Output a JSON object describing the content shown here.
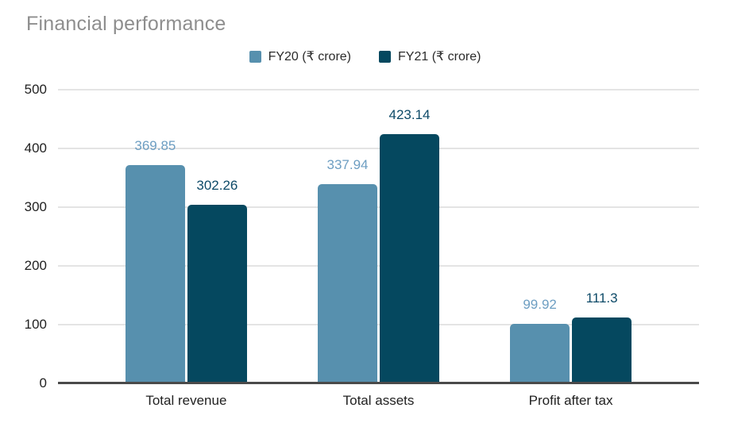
{
  "chart_data": {
    "type": "bar",
    "title": "Financial performance",
    "title_color": "#8e8e8e",
    "categories": [
      "Total revenue",
      "Total assets",
      "Profit after tax"
    ],
    "series": [
      {
        "name": "FY20 (₹ crore)",
        "color": "#5790ae",
        "label_color": "#6d9ec2",
        "values": [
          369.85,
          337.94,
          99.92
        ]
      },
      {
        "name": "FY21 (₹ crore)",
        "color": "#05485f",
        "label_color": "#0d4a68",
        "values": [
          302.26,
          423.14,
          111.3
        ]
      }
    ],
    "xlabel": "",
    "ylabel": "",
    "ylim": [
      0,
      500
    ],
    "yticks": [
      0,
      100,
      200,
      300,
      400,
      500
    ],
    "grid": true,
    "legend_position": "top",
    "gridline_color": "#e4e4e4",
    "axis_line_color": "#4a4a4a"
  }
}
